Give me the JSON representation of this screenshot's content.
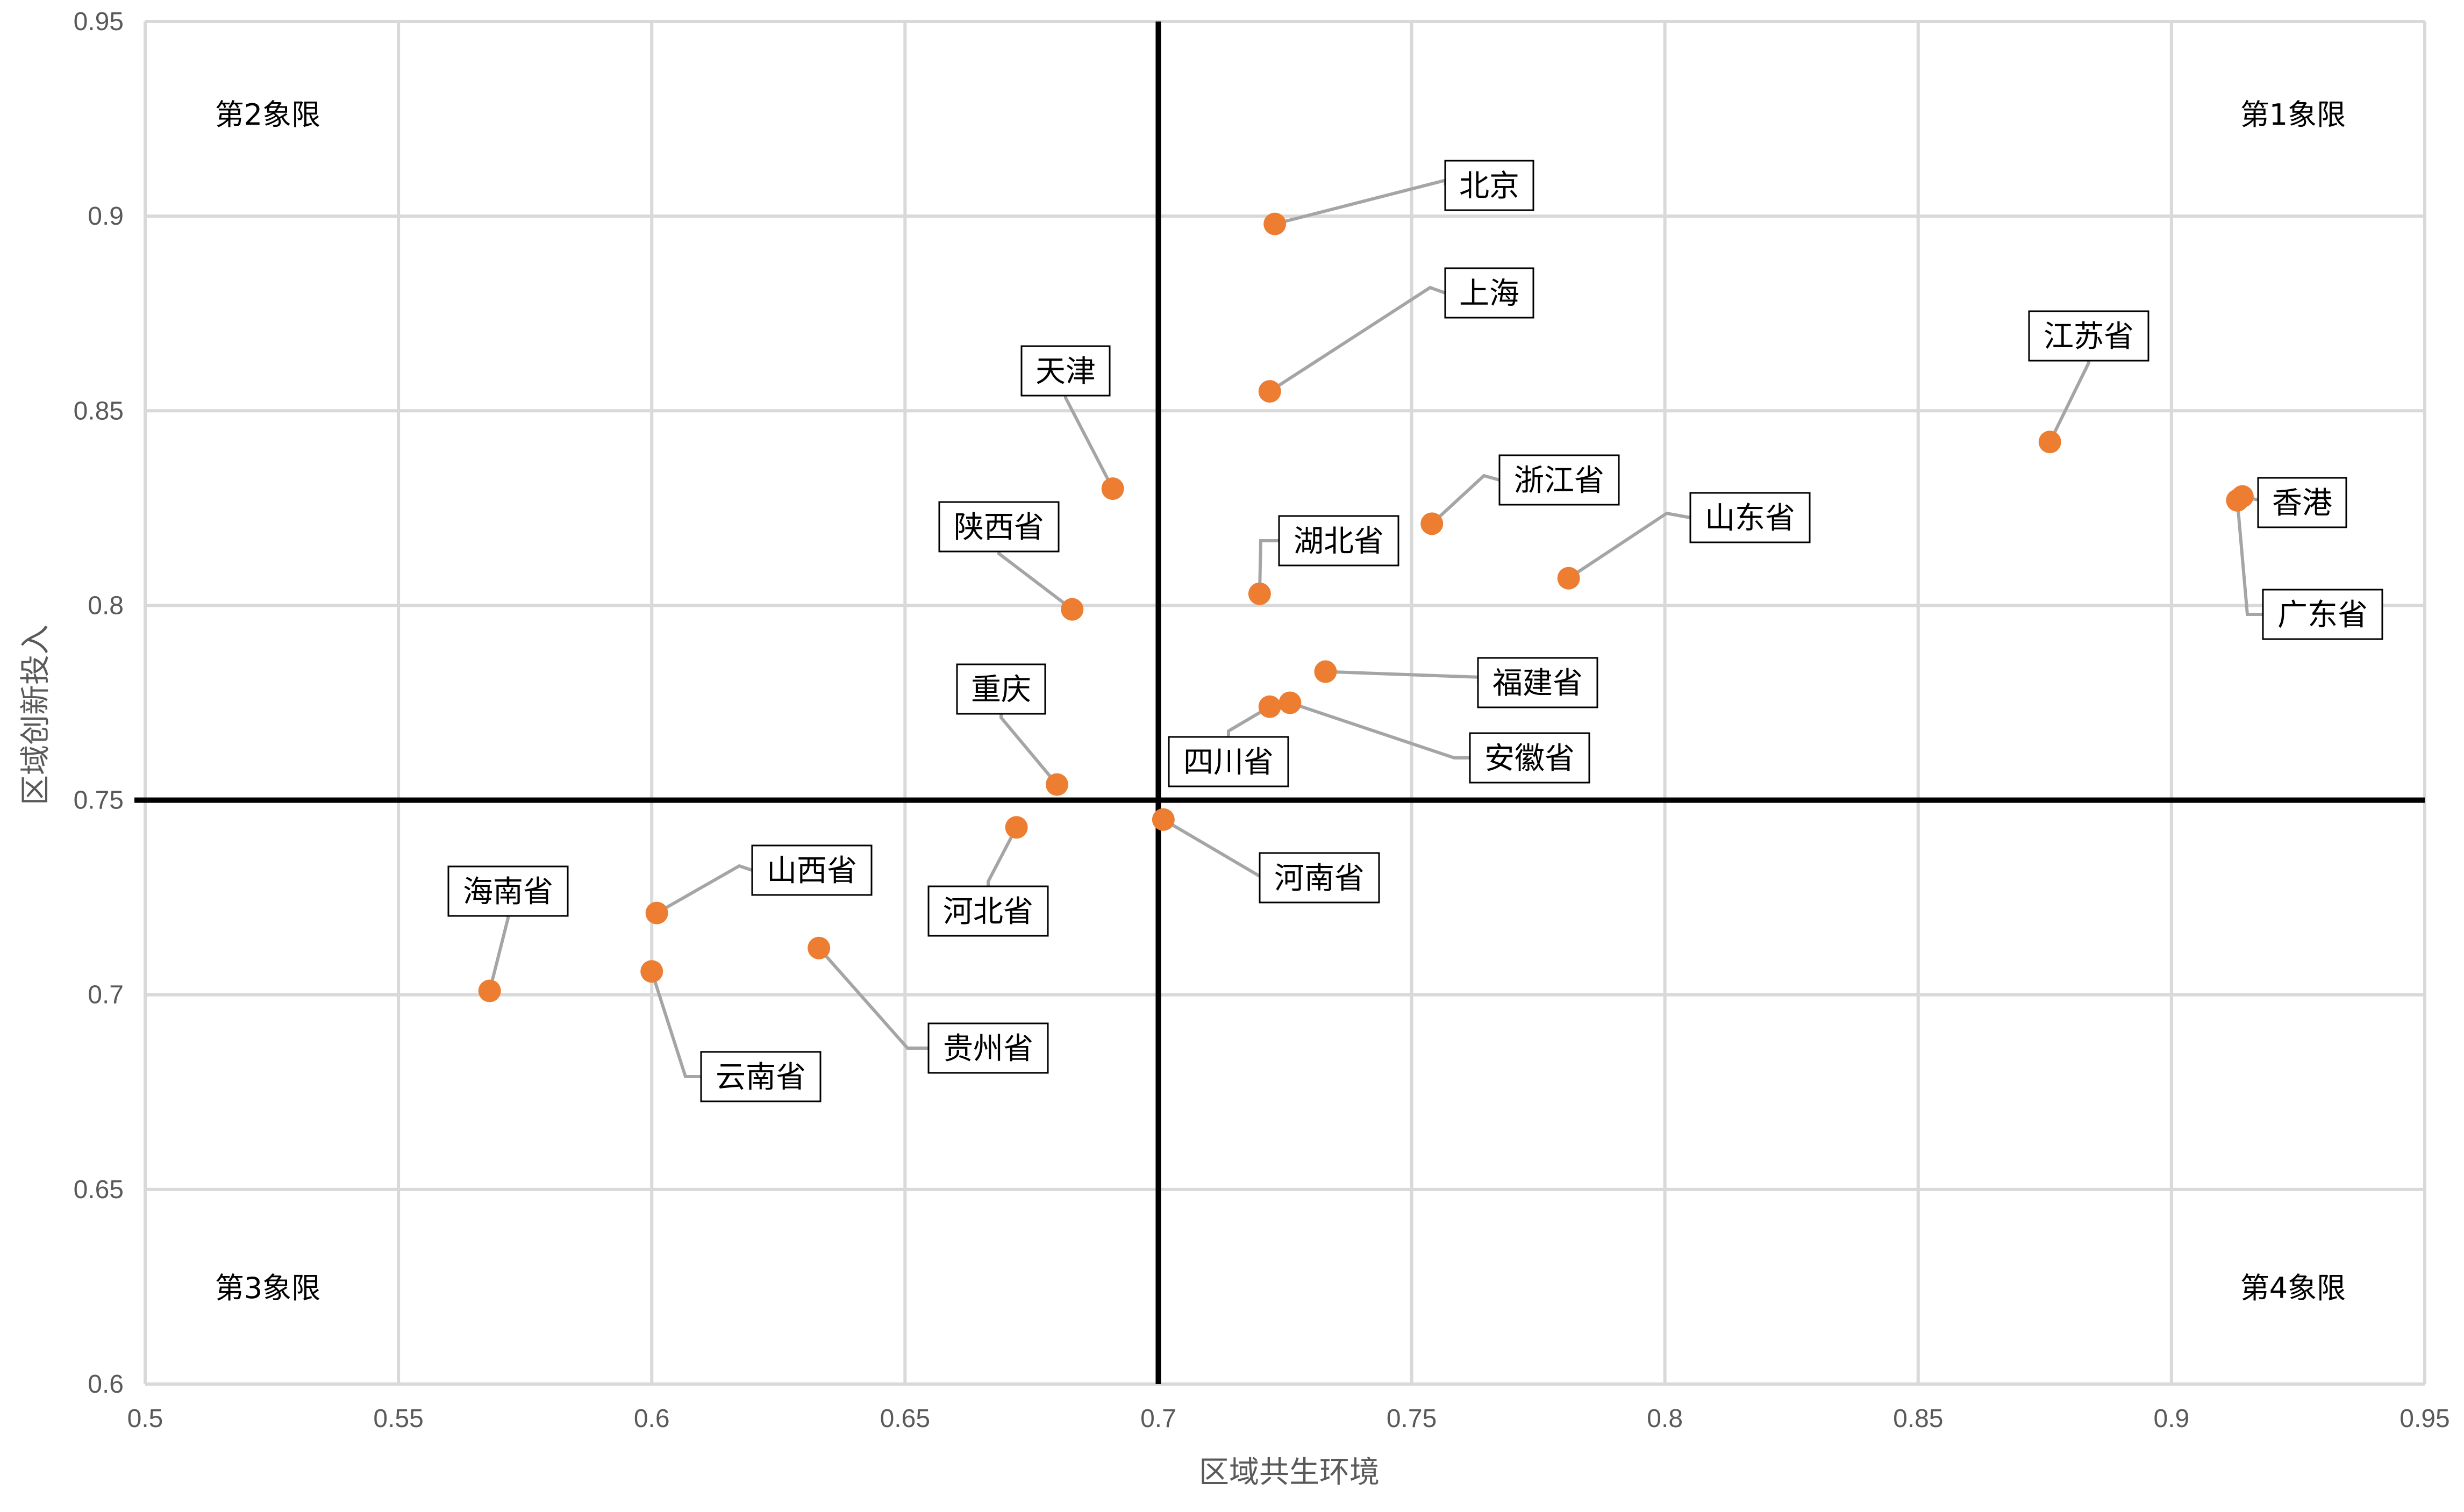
{
  "chart_data": {
    "type": "scatter",
    "xlabel": "区域共生环境",
    "ylabel": "区域创新投入",
    "xlim": [
      0.5,
      0.95
    ],
    "ylim": [
      0.6,
      0.95
    ],
    "x_ticks": [
      "0.5",
      "0.55",
      "0.6",
      "0.65",
      "0.7",
      "0.75",
      "0.8",
      "0.85",
      "0.9",
      "0.95"
    ],
    "y_ticks": [
      "0.6",
      "0.65",
      "0.7",
      "0.75",
      "0.8",
      "0.85",
      "0.9",
      "0.95"
    ],
    "grid": true,
    "divider": {
      "x": 0.7,
      "y": 0.75
    },
    "quadrants": [
      "第1象限",
      "第2象限",
      "第3象限",
      "第4象限"
    ],
    "marker_color": "#ed7d31",
    "points": [
      {
        "label": "北京",
        "x": 0.723,
        "y": 0.898
      },
      {
        "label": "上海",
        "x": 0.722,
        "y": 0.855
      },
      {
        "label": "天津",
        "x": 0.691,
        "y": 0.83
      },
      {
        "label": "江苏省",
        "x": 0.876,
        "y": 0.842
      },
      {
        "label": "浙江省",
        "x": 0.754,
        "y": 0.821
      },
      {
        "label": "山东省",
        "x": 0.781,
        "y": 0.807
      },
      {
        "label": "香港",
        "x": 0.914,
        "y": 0.828
      },
      {
        "label": "广东省",
        "x": 0.913,
        "y": 0.827
      },
      {
        "label": "湖北省",
        "x": 0.72,
        "y": 0.803
      },
      {
        "label": "陕西省",
        "x": 0.683,
        "y": 0.799
      },
      {
        "label": "福建省",
        "x": 0.733,
        "y": 0.783
      },
      {
        "label": "四川省",
        "x": 0.722,
        "y": 0.774
      },
      {
        "label": "安徽省",
        "x": 0.726,
        "y": 0.775
      },
      {
        "label": "重庆",
        "x": 0.68,
        "y": 0.754
      },
      {
        "label": "河南省",
        "x": 0.701,
        "y": 0.745
      },
      {
        "label": "河北省",
        "x": 0.672,
        "y": 0.743
      },
      {
        "label": "山西省",
        "x": 0.601,
        "y": 0.721
      },
      {
        "label": "海南省",
        "x": 0.568,
        "y": 0.701
      },
      {
        "label": "云南省",
        "x": 0.6,
        "y": 0.706
      },
      {
        "label": "贵州省",
        "x": 0.633,
        "y": 0.712
      }
    ]
  }
}
